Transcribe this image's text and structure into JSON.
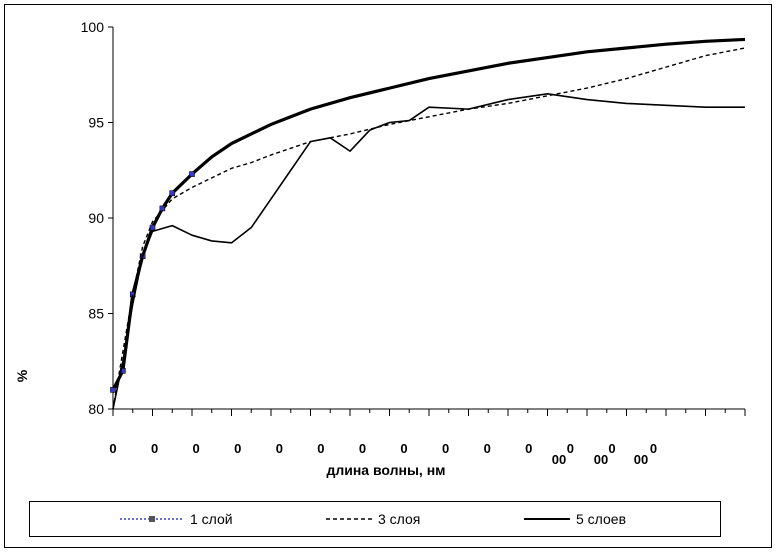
{
  "chart_data": {
    "type": "line",
    "title": "",
    "xlabel": "длина волны, нм",
    "ylabel": "%",
    "ylim": [
      80,
      100
    ],
    "yticks": [
      "80",
      "85",
      "90",
      "95",
      "100"
    ],
    "yticks_values": [
      80,
      85,
      90,
      95,
      100
    ],
    "xtick_labels": [
      "0",
      "0",
      "0",
      "0",
      "0",
      "0",
      "0",
      "0",
      "0",
      "0",
      "0",
      "0",
      "0",
      "0",
      "00",
      "00",
      "00"
    ],
    "grid": false,
    "legend_position": "bottom",
    "colors": {
      "series1": "#3a3ac8",
      "series2": "#000000",
      "series3": "#000000"
    },
    "series": [
      {
        "name": "1 слой",
        "style": "dotted-marker",
        "x": [
          0,
          0.25,
          0.5,
          0.75,
          1,
          1.25,
          1.5,
          2,
          2.5,
          3,
          3.5,
          4,
          4.5,
          5,
          6,
          7,
          8,
          9,
          10,
          11,
          12,
          13,
          14,
          15,
          16
        ],
        "values": [
          81,
          82,
          86,
          88,
          89.5,
          90.5,
          91.3,
          92.3,
          93.2,
          93.9,
          94.4,
          94.9,
          95.3,
          95.7,
          96.3,
          96.8,
          97.3,
          97.7,
          98.1,
          98.4,
          98.7,
          98.9,
          99.1,
          99.25,
          99.35
        ]
      },
      {
        "name": "3 слоя",
        "style": "dashed",
        "x": [
          0,
          0.25,
          0.5,
          0.75,
          1,
          1.5,
          2,
          2.5,
          3,
          3.5,
          4,
          5,
          6,
          7,
          8,
          9,
          10,
          11,
          12,
          13,
          14,
          15,
          16
        ],
        "values": [
          80,
          83,
          86,
          88.5,
          89.8,
          91.0,
          91.6,
          92.1,
          92.6,
          92.9,
          93.3,
          94.0,
          94.4,
          94.9,
          95.3,
          95.7,
          96.0,
          96.4,
          96.8,
          97.3,
          97.9,
          98.5,
          98.9
        ]
      },
      {
        "name": "5 слоев",
        "style": "solid",
        "x": [
          0,
          0.25,
          0.5,
          0.75,
          1,
          1.5,
          2,
          2.5,
          3,
          3.5,
          4,
          4.5,
          5,
          5.5,
          6,
          6.5,
          7,
          7.5,
          8,
          9,
          10,
          11,
          12,
          13,
          14,
          15,
          16
        ],
        "values": [
          80,
          82.5,
          85.5,
          88,
          89.3,
          89.6,
          89.1,
          88.8,
          88.7,
          89.5,
          91.0,
          92.5,
          94.0,
          94.2,
          93.5,
          94.6,
          95.0,
          95.1,
          95.8,
          95.7,
          96.2,
          96.5,
          96.2,
          96.0,
          95.9,
          95.8,
          95.8
        ]
      }
    ]
  }
}
